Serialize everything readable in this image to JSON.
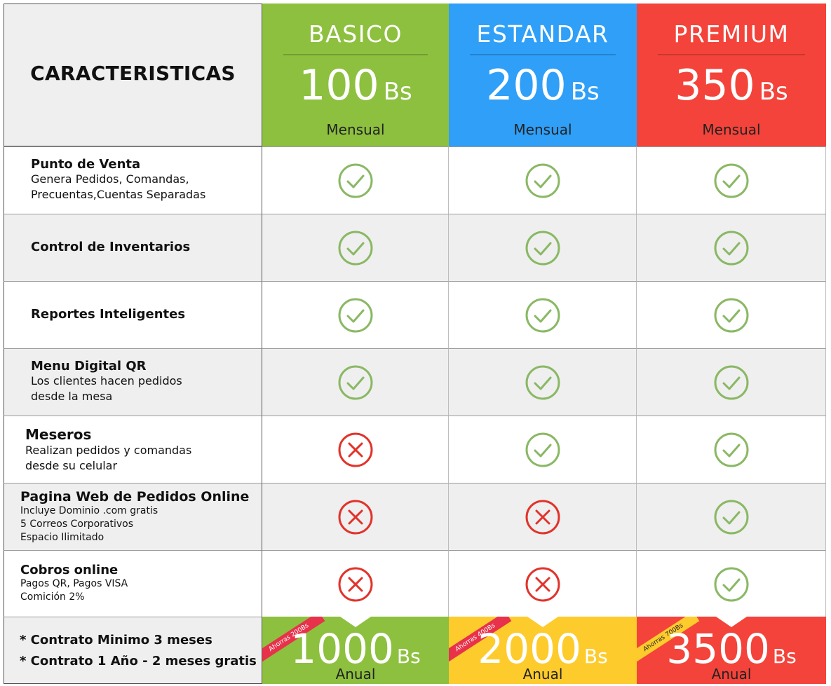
{
  "header": {
    "features_title": "CARACTERISTICAS"
  },
  "plans": [
    {
      "name": "BASICO",
      "price": "100",
      "currency": "Bs",
      "period": "Mensual",
      "color": "#8dc03f"
    },
    {
      "name": "ESTANDAR",
      "price": "200",
      "currency": "Bs",
      "period": "Mensual",
      "color": "#2f9ff8"
    },
    {
      "name": "PREMIUM",
      "price": "350",
      "currency": "Bs",
      "period": "Mensual",
      "color": "#f4433a"
    }
  ],
  "features": [
    {
      "title": "Punto de Venta",
      "lines": [
        "Genera Pedidos, Comandas,",
        "Precuentas,Cuentas Separadas"
      ],
      "included": [
        true,
        true,
        true
      ]
    },
    {
      "title": "Control de Inventarios",
      "lines": [],
      "included": [
        true,
        true,
        true
      ]
    },
    {
      "title": "Reportes Inteligentes",
      "lines": [],
      "included": [
        true,
        true,
        true
      ]
    },
    {
      "title": "Menu Digital QR",
      "lines": [
        "Los clientes hacen pedidos",
        "desde la mesa"
      ],
      "included": [
        true,
        true,
        true
      ]
    },
    {
      "title": "Meseros",
      "lines": [
        "Realizan pedidos y comandas",
        "desde su celular"
      ],
      "included": [
        false,
        true,
        true
      ]
    },
    {
      "title": "Pagina Web de Pedidos Online",
      "lines": [
        "Incluye Dominio .com gratis",
        "5 Correos Corporativos",
        "Espacio Ilimitado"
      ],
      "included": [
        false,
        false,
        true
      ]
    },
    {
      "title": "Cobros online",
      "lines": [
        "Pagos QR, Pagos VISA",
        "Comición 2%"
      ],
      "included": [
        false,
        false,
        true
      ]
    }
  ],
  "footer": {
    "notes": [
      "* Contrato Minimo 3 meses",
      "* Contrato 1 Año  - 2 meses gratis"
    ],
    "annual": [
      {
        "price": "1000",
        "currency": "Bs",
        "period": "Anual",
        "savings": "Ahorras 200Bs",
        "color": "#8dc03f",
        "ribbon_color": "#e8314a",
        "ribbon_text_color": "#ffffff"
      },
      {
        "price": "2000",
        "currency": "Bs",
        "period": "Anual",
        "savings": "Ahorras 400Bs",
        "color": "#fdcb2c",
        "ribbon_color": "#e8314a",
        "ribbon_text_color": "#ffffff"
      },
      {
        "price": "3500",
        "currency": "Bs",
        "period": "Anual",
        "savings": "Ahorras 700Bs",
        "color": "#f4433a",
        "ribbon_color": "#fdcb2c",
        "ribbon_text_color": "#222222"
      }
    ]
  },
  "icons": {
    "check": "check-circle-icon",
    "cross": "x-circle-icon",
    "check_color": "#8ab864",
    "cross_color": "#e2332b"
  }
}
